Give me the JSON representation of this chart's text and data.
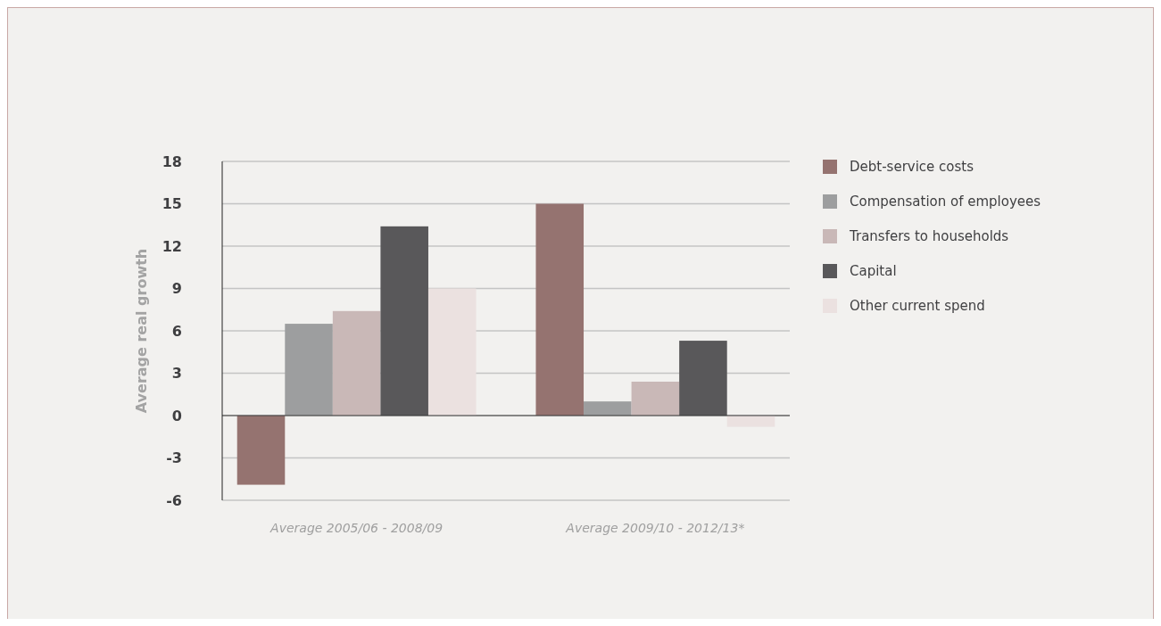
{
  "chart_data": {
    "type": "bar",
    "ylabel": "Average real growth",
    "categories": [
      "Average 2005/06 - 2008/09",
      "Average 2009/10 - 2012/13*"
    ],
    "series": [
      {
        "name": "Debt-service costs",
        "color": "#957370",
        "values": [
          -4.9,
          15
        ]
      },
      {
        "name": "Compensation of employees",
        "color": "#9d9e9f",
        "values": [
          6.5,
          1.0
        ]
      },
      {
        "name": "Transfers to households",
        "color": "#c9b8b7",
        "values": [
          7.4,
          2.4
        ]
      },
      {
        "name": "Capital",
        "color": "#59585a",
        "values": [
          13.4,
          5.3
        ]
      },
      {
        "name": "Other current spend",
        "color": "#ebe1e0",
        "values": [
          9.0,
          -0.8
        ]
      }
    ],
    "ylim": [
      -6,
      18
    ],
    "yticks": [
      -6,
      -3,
      0,
      3,
      6,
      9,
      12,
      15,
      18
    ],
    "grid": "y",
    "legend": "right"
  }
}
